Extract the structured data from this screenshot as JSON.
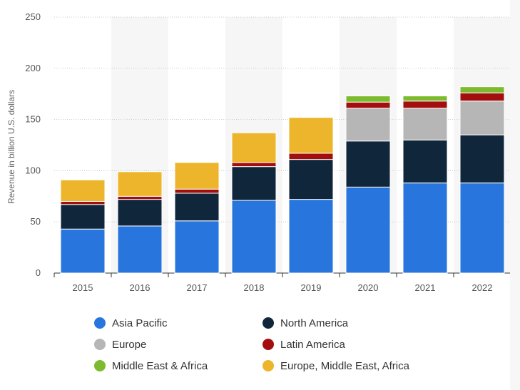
{
  "chart_data": {
    "type": "bar",
    "stacked": true,
    "title": "",
    "xlabel": "",
    "ylabel": "Revenue in billion U.S. dollars",
    "ylim": [
      0,
      250
    ],
    "yticks": [
      0,
      50,
      100,
      150,
      200,
      250
    ],
    "categories": [
      "2015",
      "2016",
      "2017",
      "2018",
      "2019",
      "2020",
      "2021",
      "2022"
    ],
    "series": [
      {
        "name": "Asia Pacific",
        "color": "#2876dd",
        "values": [
          43,
          46,
          51,
          71,
          72,
          84,
          88,
          88
        ]
      },
      {
        "name": "North America",
        "color": "#10263b",
        "values": [
          24,
          26,
          27,
          33,
          39,
          45,
          42,
          47
        ]
      },
      {
        "name": "Europe",
        "color": "#b6b6b6",
        "values": [
          0,
          0,
          0,
          0,
          0,
          32,
          31,
          33
        ]
      },
      {
        "name": "Latin America",
        "color": "#a30f0f",
        "values": [
          3,
          3,
          4,
          4,
          6,
          6,
          7,
          8
        ]
      },
      {
        "name": "Middle East & Africa",
        "color": "#7cbb2e",
        "values": [
          0,
          0,
          0,
          0,
          0,
          6,
          5,
          6
        ]
      },
      {
        "name": "Europe, Middle East, Africa",
        "color": "#ecb52b",
        "values": [
          21,
          24,
          26,
          29,
          35,
          0,
          0,
          0
        ]
      }
    ],
    "legend_position": "bottom",
    "grid": true
  }
}
